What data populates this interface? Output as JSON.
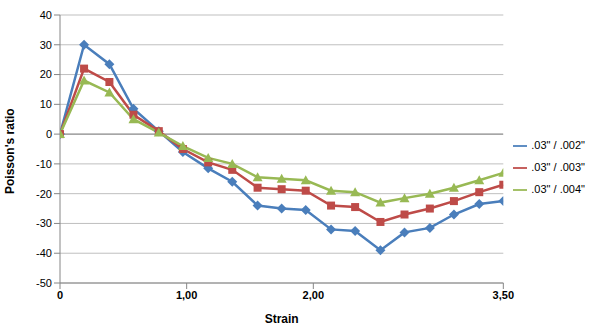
{
  "chart_data": {
    "type": "line",
    "x_label": "Strain",
    "y_label": "Poisson's ratio",
    "x": [
      0,
      0.19,
      0.39,
      0.58,
      0.78,
      0.97,
      1.17,
      1.36,
      1.56,
      1.75,
      1.94,
      2.14,
      2.33,
      2.53,
      2.72,
      2.92,
      3.11,
      3.31,
      3.5
    ],
    "series": [
      {
        "name": ".03\" / .002\"",
        "color": "#4a7ebb",
        "marker": "diamond",
        "values": [
          0,
          30,
          23.5,
          8.5,
          1,
          -6,
          -11.5,
          -16,
          -24,
          -25,
          -25.5,
          -32,
          -32.5,
          -39,
          -33,
          -31.5,
          -27,
          -23.5,
          -22.5
        ]
      },
      {
        "name": ".03\" / .003\"",
        "color": "#be4b48",
        "marker": "square",
        "values": [
          0,
          22,
          17.5,
          6.5,
          1,
          -5,
          -9.5,
          -12,
          -18,
          -18.5,
          -19,
          -24,
          -24.5,
          -29.5,
          -27,
          -25,
          -22.5,
          -19.5,
          -17
        ]
      },
      {
        "name": ".03\" / .004\"",
        "color": "#98b954",
        "marker": "triangle",
        "values": [
          0,
          18,
          14,
          5,
          0.5,
          -4,
          -8,
          -10,
          -14.5,
          -15,
          -15.5,
          -19,
          -19.5,
          -23,
          -21.5,
          -20,
          -18,
          -15.5,
          -13
        ]
      }
    ],
    "xlim": [
      0,
      3.5
    ],
    "xticks": [
      {
        "value": 0,
        "label": "0"
      },
      {
        "value": 1,
        "label": "1,00"
      },
      {
        "value": 2,
        "label": "2,00"
      },
      {
        "value": 3.5,
        "label": "3,50"
      }
    ],
    "ylim": [
      -50,
      40
    ],
    "yticks": [
      -50,
      -40,
      -30,
      -20,
      -10,
      0,
      10,
      20,
      30,
      40
    ],
    "grid": true,
    "legend": "right"
  }
}
